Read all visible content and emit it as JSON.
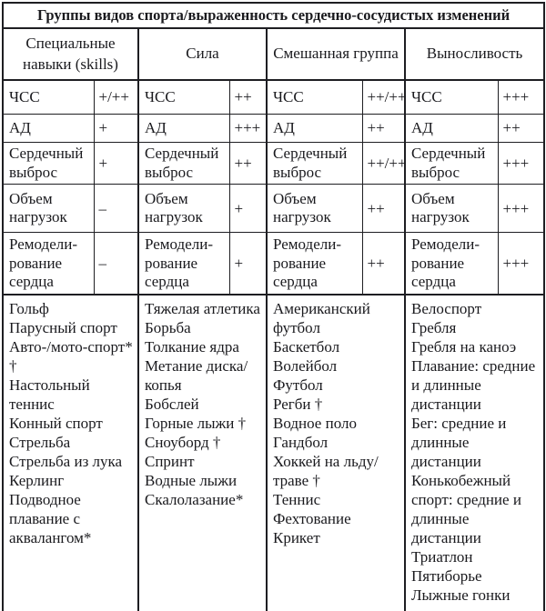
{
  "title": "Группы видов спорта/выраженность сердечно-сосудистых изменений",
  "colors": {
    "background": "#ffffff",
    "text": "#1a1a1e",
    "border": "#1e1e22"
  },
  "groups": [
    {
      "name": "Специальные навыки (skills)",
      "params": [
        {
          "label": "ЧСС",
          "value": "+/++"
        },
        {
          "label": "АД",
          "value": "+"
        },
        {
          "label": "Сердечный выброс",
          "value": "+"
        },
        {
          "label": "Объем нагрузок",
          "value": "–"
        },
        {
          "label": "Ремодели-рование сердца",
          "value": "–"
        }
      ],
      "sports": [
        "Гольф",
        "Парусный спорт",
        "Авто-/мото-спорт* †",
        "Настольный теннис",
        "Конный спорт",
        "Стрельба",
        "Стрельба из лука",
        "Керлинг",
        "Подводное плавание с аквалангом*"
      ]
    },
    {
      "name": "Сила",
      "params": [
        {
          "label": "ЧСС",
          "value": "++"
        },
        {
          "label": "АД",
          "value": "+++"
        },
        {
          "label": "Сердечный выброс",
          "value": "++"
        },
        {
          "label": "Объем нагрузок",
          "value": "+"
        },
        {
          "label": "Ремодели-рование сердца",
          "value": "+"
        }
      ],
      "sports": [
        "Тяжелая атлетика",
        "Борьба",
        "Толкание ядра",
        "Метание диска/копья",
        "Бобслей",
        "Горные лыжи †",
        "Сноуборд †",
        "Спринт",
        "Водные лыжи",
        "Скалолазание*"
      ]
    },
    {
      "name": "Смешанная группа",
      "params": [
        {
          "label": "ЧСС",
          "value": "++/+++"
        },
        {
          "label": "АД",
          "value": "++"
        },
        {
          "label": "Сердечный выброс",
          "value": "++/+++"
        },
        {
          "label": "Объем нагрузок",
          "value": "++"
        },
        {
          "label": "Ремодели-рование сердца",
          "value": "++"
        }
      ],
      "sports": [
        "Американский футбол",
        "Баскетбол",
        "Волейбол",
        "Футбол",
        "Регби †",
        "Водное поло",
        "Гандбол",
        "Хоккей на льду/траве †",
        "Теннис",
        "Фехтование",
        "Крикет"
      ]
    },
    {
      "name": "Выносливость",
      "params": [
        {
          "label": "ЧСС",
          "value": "+++"
        },
        {
          "label": "АД",
          "value": "++"
        },
        {
          "label": "Сердечный выброс",
          "value": "+++"
        },
        {
          "label": "Объем нагрузок",
          "value": "+++"
        },
        {
          "label": "Ремодели-рование сердца",
          "value": "+++"
        }
      ],
      "sports": [
        "Велоспорт",
        "Гребля",
        "Гребля на каноэ",
        "Плавание: средние и длинные дистанции",
        "Бег: средние и длинные дистанции",
        "Конькобежный спорт: средние и длинные дистанции",
        "Триатлон",
        "Пятиборье",
        "Лыжные гонки"
      ]
    }
  ]
}
